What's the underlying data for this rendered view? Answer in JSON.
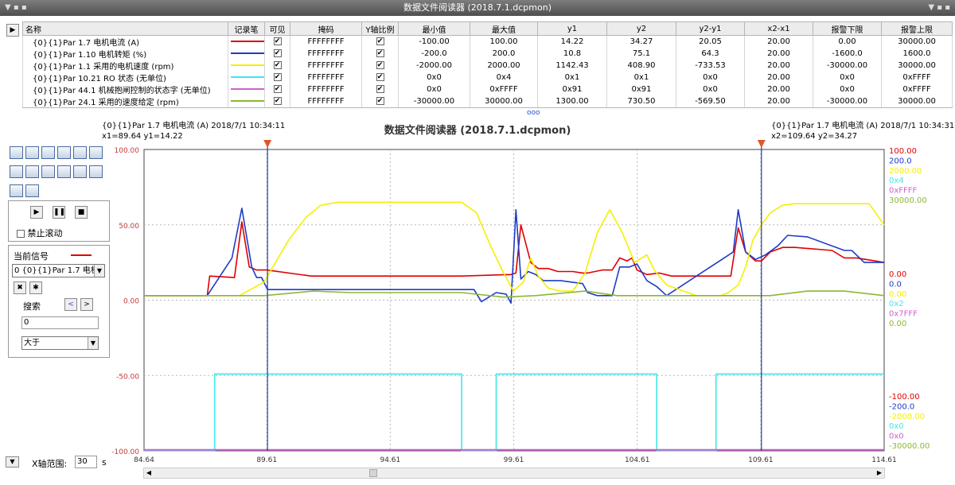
{
  "window": {
    "title": "数据文件阅读器 (2018.7.1.dcpmon)"
  },
  "table": {
    "headers": [
      "名称",
      "记录笔",
      "可见",
      "掩码",
      "Y轴比例",
      "最小值",
      "最大值",
      "y1",
      "y2",
      "y2-y1",
      "x2-x1",
      "报警下限",
      "报警上限"
    ],
    "rows": [
      {
        "name": "{0}{1}Par 1.7 电机电流 (A)",
        "pen": "#e00000",
        "mask": "FFFFFFFF",
        "min": "-100.00",
        "max": "100.00",
        "y1": "14.22",
        "y2": "34.27",
        "dy": "20.05",
        "dx": "20.00",
        "alarm_low": "0.00",
        "alarm_high": "30000.00"
      },
      {
        "name": "{0}{1}Par 1.10 电机转矩 (%)",
        "pen": "#1e3cc8",
        "mask": "FFFFFFFF",
        "min": "-200.0",
        "max": "200.0",
        "y1": "10.8",
        "y2": "75.1",
        "dy": "64.3",
        "dx": "20.00",
        "alarm_low": "-1600.0",
        "alarm_high": "1600.0"
      },
      {
        "name": "{0}{1}Par 1.1 采用的电机速度 (rpm)",
        "pen": "#f4f000",
        "mask": "FFFFFFFF",
        "min": "-2000.00",
        "max": "2000.00",
        "y1": "1142.43",
        "y2": "408.90",
        "dy": "-733.53",
        "dx": "20.00",
        "alarm_low": "-30000.00",
        "alarm_high": "30000.00"
      },
      {
        "name": "{0}{1}Par 10.21 RO 状态 (无单位)",
        "pen": "#3fe8e8",
        "mask": "FFFFFFFF",
        "min": "0x0",
        "max": "0x4",
        "y1": "0x1",
        "y2": "0x1",
        "dy": "0x0",
        "dx": "20.00",
        "alarm_low": "0x0",
        "alarm_high": "0xFFFF"
      },
      {
        "name": "{0}{1}Par 44.1 机械抱闸控制的状态字 (无单位)",
        "pen": "#d060d0",
        "mask": "FFFFFFFF",
        "min": "0x0",
        "max": "0xFFFF",
        "y1": "0x91",
        "y2": "0x91",
        "dy": "0x0",
        "dx": "20.00",
        "alarm_low": "0x0",
        "alarm_high": "0xFFFF"
      },
      {
        "name": "{0}{1}Par 24.1 采用的速度给定 (rpm)",
        "pen": "#8cb832",
        "mask": "FFFFFFFF",
        "min": "-30000.00",
        "max": "30000.00",
        "y1": "1300.00",
        "y2": "730.50",
        "dy": "-569.50",
        "dx": "20.00",
        "alarm_low": "-30000.00",
        "alarm_high": "30000.00"
      }
    ]
  },
  "splitter_glyph": "ooo",
  "cursors": {
    "c1_label": "{0}{1}Par 1.7 电机电流 (A) 2018/7/1 10:34:11",
    "c1_values": "x1=89.64 y1=14.22",
    "c2_label": "{0}{1}Par 1.7 电机电流 (A) 2018/7/1 10:34:31",
    "c2_values": "x2=109.64 y2=34.27"
  },
  "controls": {
    "disable_scroll_label": "禁止滚动",
    "current_signal_label": "当前信号",
    "current_signal_value": "0 {0}{1}Par 1.7 电机电",
    "search_label": "搜索",
    "search_value": "0",
    "compare_value": "大于",
    "x_range_label": "X轴范围:",
    "x_range_value": "30",
    "x_range_unit": "s"
  },
  "chart_data": {
    "type": "line",
    "title": "数据文件阅读器 (2018.7.1.dcpmon)",
    "xlim": [
      84.64,
      114.61
    ],
    "xticks": [
      "84.64",
      "89.61",
      "94.61",
      "99.61",
      "104.61",
      "109.61",
      "114.61"
    ],
    "ylim": [
      -100,
      100
    ],
    "left_yticks": [
      "100.00",
      "50.00",
      "0.00",
      "-50.00",
      "-100.00"
    ],
    "cursor_x": [
      89.64,
      109.64
    ],
    "right_scale_top": [
      "100.00",
      "200.0",
      "2000.00",
      "0x4",
      "0xFFFF",
      "30000.00"
    ],
    "right_scale_mid": [
      "0.00",
      "0.0",
      "0.00",
      "0x2",
      "0x7FFF",
      "0.00"
    ],
    "right_scale_bottom": [
      "-100.00",
      "-200.0",
      "-2000.00",
      "0x0",
      "0x0",
      "-30000.00"
    ],
    "series": [
      {
        "name": "{0}{1}Par 1.7 电机电流 (A)",
        "color": "#e00000",
        "x": [
          84.64,
          87.2,
          87.3,
          88.3,
          88.6,
          88.9,
          89.2,
          89.4,
          89.6,
          91.4,
          94,
          97.5,
          99.5,
          99.7,
          99.9,
          100.3,
          100.6,
          101,
          101.4,
          102,
          102.4,
          102.6,
          103.2,
          103.6,
          103.9,
          104.2,
          104.4,
          104.6,
          105,
          105.5,
          106,
          107.5,
          108.4,
          108.7,
          109,
          109.4,
          109.64,
          110,
          110.5,
          111,
          112.5,
          113,
          113.5,
          114.61
        ],
        "y": [
          3,
          3,
          16,
          15,
          52,
          22,
          20,
          20,
          20,
          16,
          16,
          16,
          17,
          18,
          50,
          25,
          21,
          21,
          19,
          19,
          18,
          18,
          20,
          20,
          28,
          26,
          28,
          20,
          17,
          18,
          16,
          16,
          16,
          48,
          32,
          26,
          26,
          32,
          35,
          35,
          33,
          28,
          28,
          25
        ]
      },
      {
        "name": "{0}{1}Par 1.10 电机转矩 (%)",
        "color": "#1e3cc8",
        "x": [
          84.64,
          87.2,
          88.2,
          88.6,
          89.0,
          89.2,
          89.4,
          89.64,
          89.8,
          92,
          95,
          98,
          98.3,
          98.6,
          98.9,
          99.3,
          99.5,
          99.7,
          99.9,
          100.2,
          100.5,
          100.8,
          101.5,
          102.4,
          102.6,
          103,
          103.6,
          103.9,
          104.3,
          104.6,
          105,
          105.4,
          105.8,
          108.5,
          108.7,
          109,
          109.4,
          109.8,
          110.3,
          110.7,
          111.5,
          113,
          113.3,
          113.8,
          114.61
        ],
        "y": [
          3,
          3,
          28,
          61,
          22,
          15,
          15,
          7,
          7,
          7,
          7,
          7,
          -1,
          2,
          5,
          4,
          -2,
          60,
          14,
          19,
          17,
          13,
          13,
          11,
          5,
          3,
          3,
          22,
          22,
          24,
          13,
          9,
          3,
          32,
          60,
          32,
          27,
          30,
          36,
          43,
          42,
          33,
          33,
          25,
          25
        ]
      },
      {
        "name": "{0}{1}Par 1.1 采用的电机速度 (rpm)",
        "color": "#f4f000",
        "x": [
          84.64,
          87.5,
          88.5,
          89.5,
          90.5,
          91.2,
          91.8,
          92.5,
          93.5,
          97.5,
          98.1,
          98.7,
          99.2,
          99.6,
          100,
          100.3,
          100.6,
          101,
          101.5,
          102,
          102.5,
          103,
          103.5,
          104,
          104.5,
          105,
          105.3,
          105.8,
          107,
          108,
          108.3,
          108.7,
          109,
          109.3,
          109.64,
          110,
          110.5,
          111,
          111.5,
          112,
          113,
          114,
          114.61
        ],
        "y": [
          3,
          3,
          3,
          12,
          40,
          55,
          63,
          65,
          65,
          65,
          58,
          35,
          18,
          6,
          12,
          28,
          16,
          8,
          6,
          6,
          18,
          45,
          60,
          45,
          25,
          30,
          20,
          10,
          3,
          3,
          5,
          10,
          22,
          40,
          50,
          58,
          63,
          64,
          64,
          64,
          64,
          64,
          50
        ]
      },
      {
        "name": "{0}{1}Par 10.21 RO 状态 (无单位)",
        "color": "#3fe8e8",
        "x": [
          84.64,
          87.5,
          87.5,
          97.5,
          97.5,
          98.9,
          98.9,
          105.4,
          105.4,
          107.8,
          107.8,
          114.61
        ],
        "y": [
          -100,
          -100,
          -49,
          -49,
          -100,
          -100,
          -49,
          -49,
          -100,
          -100,
          -49,
          -49
        ]
      },
      {
        "name": "{0}{1}Par 44.1 机械抱闸控制的状态字 (无单位)",
        "color": "#d060d0",
        "x": [
          84.64,
          114.61
        ],
        "y": [
          -99.3,
          -99.3
        ]
      },
      {
        "name": "{0}{1}Par 24.1 采用的速度给定 (rpm)",
        "color": "#8cb832",
        "x": [
          84.64,
          87.5,
          89.5,
          91.5,
          93,
          97.5,
          99.2,
          100.5,
          102.5,
          103.8,
          105.5,
          107.5,
          110,
          111.5,
          113,
          114.61
        ],
        "y": [
          3,
          3,
          3,
          6,
          5,
          5,
          2,
          3,
          6,
          3,
          3,
          3,
          3,
          6,
          6,
          3
        ]
      }
    ]
  }
}
